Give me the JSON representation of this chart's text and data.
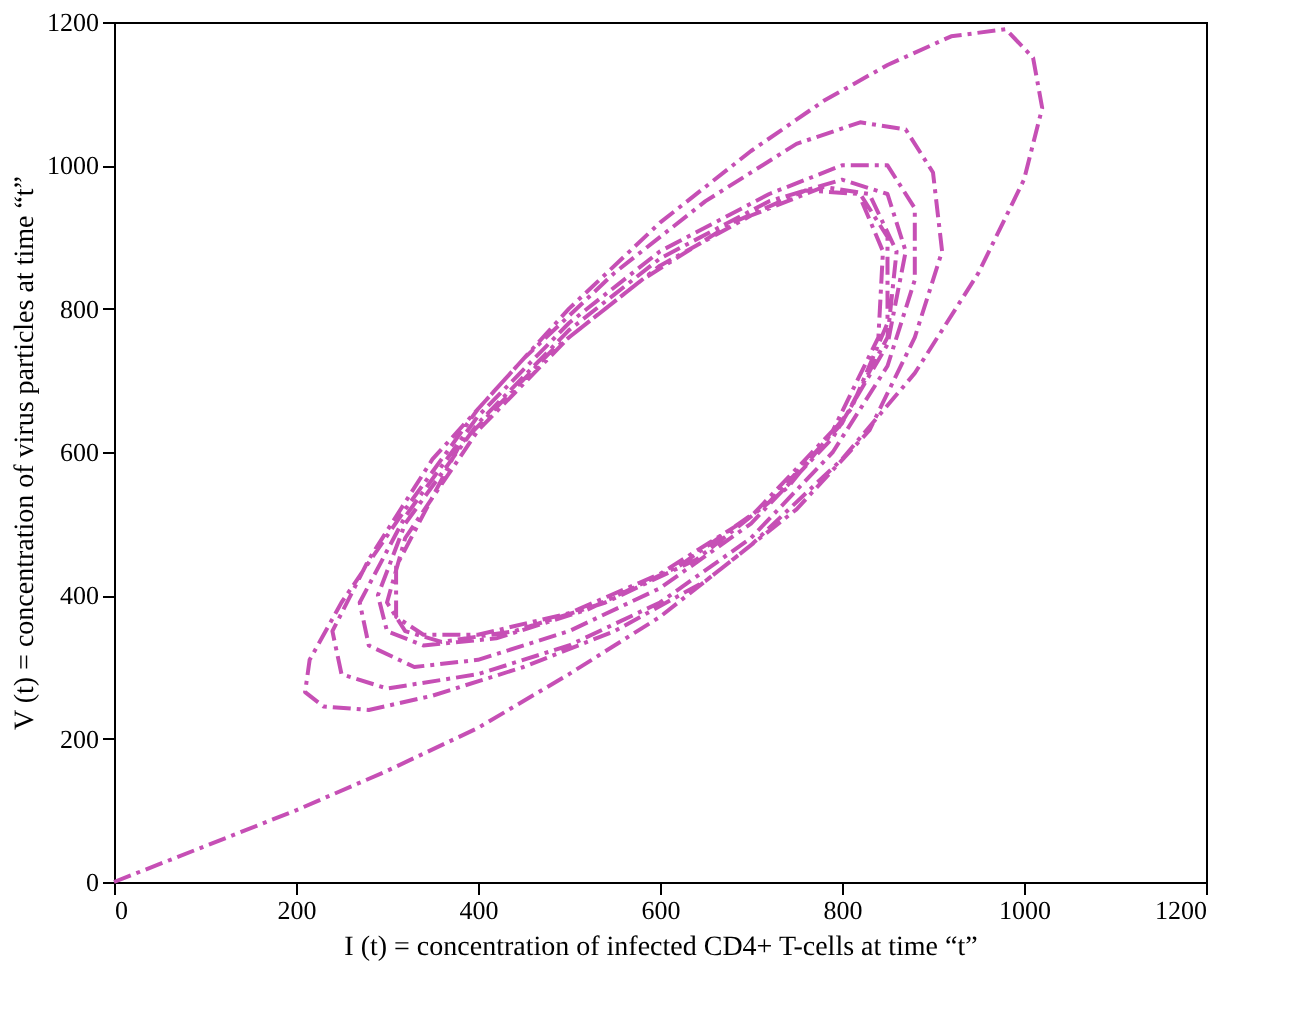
{
  "chart_data": {
    "type": "line",
    "xlabel": "I (t) = concentration of infected CD4+ T-cells at time “t”",
    "ylabel": "V (t) = concentration of virus particles at time “t”",
    "xlim": [
      0,
      1200
    ],
    "ylim": [
      0,
      1200
    ],
    "xticks": [
      0,
      200,
      400,
      600,
      800,
      1000,
      1200
    ],
    "yticks": [
      0,
      200,
      400,
      600,
      800,
      1000,
      1200
    ],
    "grid": false,
    "marker": "none",
    "line_style": "dashed",
    "series": [
      {
        "color": "#c64fb5",
        "x": [
          0,
          100,
          200,
          300,
          400,
          500,
          600,
          700,
          800,
          880,
          950,
          1000,
          1020,
          1010,
          980,
          920,
          850,
          780,
          700,
          600,
          500,
          400,
          320,
          250,
          215,
          210,
          230,
          280,
          350,
          450,
          550,
          650,
          750,
          830,
          880,
          910,
          900,
          870,
          820,
          750,
          650,
          550,
          450,
          350,
          280,
          240,
          250,
          300,
          400,
          500,
          600,
          700,
          790,
          850,
          880,
          880,
          850,
          800,
          720,
          600,
          500,
          400,
          320,
          270,
          280,
          330,
          400,
          500,
          600,
          700,
          790,
          850,
          870,
          850,
          800,
          720,
          600,
          500,
          400,
          320,
          290,
          300,
          340,
          420,
          520,
          620,
          720,
          800,
          850,
          860,
          830,
          780,
          700,
          600,
          500,
          400,
          320,
          300,
          320,
          360,
          440,
          540,
          640,
          740,
          810,
          850,
          850,
          820,
          760,
          680,
          580,
          480,
          380,
          310,
          310,
          340,
          400,
          500,
          600,
          700,
          790,
          840,
          845,
          820
        ],
        "values": [
          0,
          50,
          100,
          155,
          215,
          290,
          370,
          470,
          590,
          710,
          850,
          980,
          1080,
          1150,
          1190,
          1180,
          1140,
          1090,
          1020,
          920,
          800,
          660,
          520,
          390,
          310,
          265,
          245,
          240,
          260,
          300,
          350,
          420,
          520,
          630,
          760,
          880,
          990,
          1050,
          1060,
          1030,
          950,
          850,
          730,
          590,
          450,
          350,
          290,
          270,
          290,
          330,
          390,
          480,
          600,
          720,
          840,
          940,
          1000,
          1000,
          960,
          880,
          780,
          650,
          510,
          390,
          330,
          300,
          310,
          350,
          410,
          500,
          620,
          750,
          880,
          960,
          980,
          950,
          870,
          770,
          640,
          500,
          400,
          350,
          330,
          340,
          380,
          440,
          530,
          640,
          760,
          880,
          960,
          970,
          930,
          860,
          760,
          630,
          480,
          390,
          350,
          335,
          350,
          390,
          450,
          550,
          660,
          780,
          900,
          960,
          965,
          920,
          840,
          740,
          610,
          440,
          370,
          345,
          345,
          375,
          430,
          510,
          630,
          760,
          880,
          955
        ]
      }
    ]
  }
}
